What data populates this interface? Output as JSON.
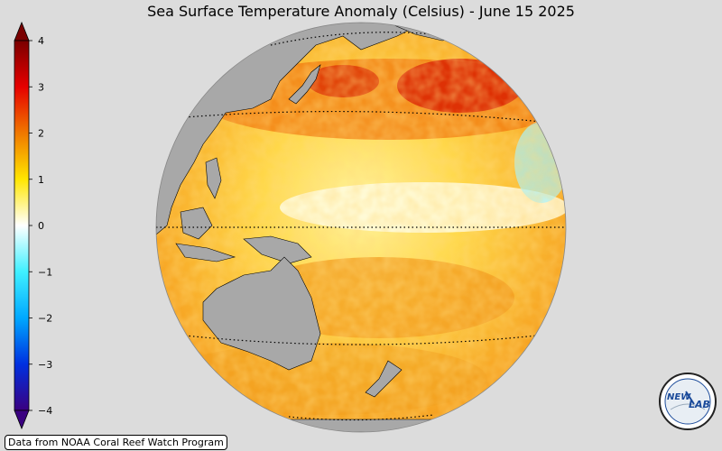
{
  "title": "Sea Surface Temperature Anomaly (Celsius) - June 15 2025",
  "credit": "Data from NOAA Coral Reef Watch Program",
  "logo": {
    "left": "NEW",
    "right": "LAB"
  },
  "colorbar": {
    "ticks": [
      "4",
      "3",
      "2",
      "1",
      "0",
      "−1",
      "−2",
      "−3",
      "−4"
    ],
    "min": -4,
    "max": 4,
    "colors": {
      "c4": "#7a0000",
      "c3": "#e60000",
      "c2": "#f07800",
      "c1": "#ffe600",
      "c0": "#ffffff",
      "cm1": "#40f0ff",
      "cm2": "#00a8ff",
      "cm3": "#0030e0",
      "cm4": "#3a0080"
    }
  },
  "colors": {
    "background": "#dcdcdc",
    "land": "#a8a8a8",
    "ocean_warm": "#f5c030"
  }
}
